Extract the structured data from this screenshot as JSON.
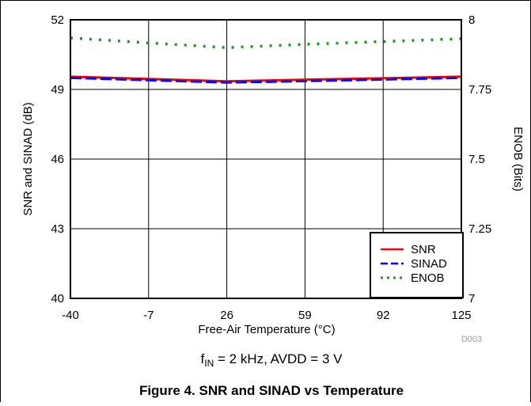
{
  "chart_data": {
    "type": "line",
    "xlabel": "Free-Air Temperature (°C)",
    "ylabel": "SNR and SINAD (dB)",
    "y2label": "ENOB (Bits)",
    "x": [
      -40,
      -7,
      26,
      59,
      92,
      125
    ],
    "xlim": [
      -40,
      125
    ],
    "ylim": [
      40,
      52
    ],
    "y2lim": [
      7,
      8
    ],
    "yticks": [
      "40",
      "43",
      "46",
      "49",
      "52"
    ],
    "y2ticks": [
      "7",
      "7.25",
      "7.5",
      "7.75",
      "8"
    ],
    "xticks": [
      "-40",
      "-7",
      "26",
      "59",
      "92",
      "125"
    ],
    "grid": true,
    "legend_position": "bottom-right",
    "series": [
      {
        "name": "SNR",
        "axis": "left",
        "color": "#ff0000",
        "style": "solid",
        "x": [
          -40,
          -7,
          26,
          59,
          92,
          125
        ],
        "values": [
          49.55,
          49.45,
          49.35,
          49.42,
          49.48,
          49.55
        ]
      },
      {
        "name": "SINAD",
        "axis": "left",
        "color": "#0000ff",
        "style": "dashed",
        "x": [
          -40,
          -7,
          26,
          59,
          92,
          125
        ],
        "values": [
          49.5,
          49.4,
          49.3,
          49.36,
          49.43,
          49.5
        ]
      },
      {
        "name": "ENOB",
        "axis": "right",
        "color": "#1a9a1a",
        "style": "dotted",
        "x": [
          -40,
          -7,
          26,
          59,
          92,
          125
        ],
        "values": [
          7.935,
          7.917,
          7.9,
          7.912,
          7.922,
          7.932
        ]
      }
    ]
  },
  "figure": {
    "code": "D003",
    "condition_prefix": "f",
    "condition_sub": "IN",
    "condition_rest": " = 2 kHz, AVDD = 3 V",
    "caption": "Figure 4. SNR and SINAD vs Temperature"
  }
}
